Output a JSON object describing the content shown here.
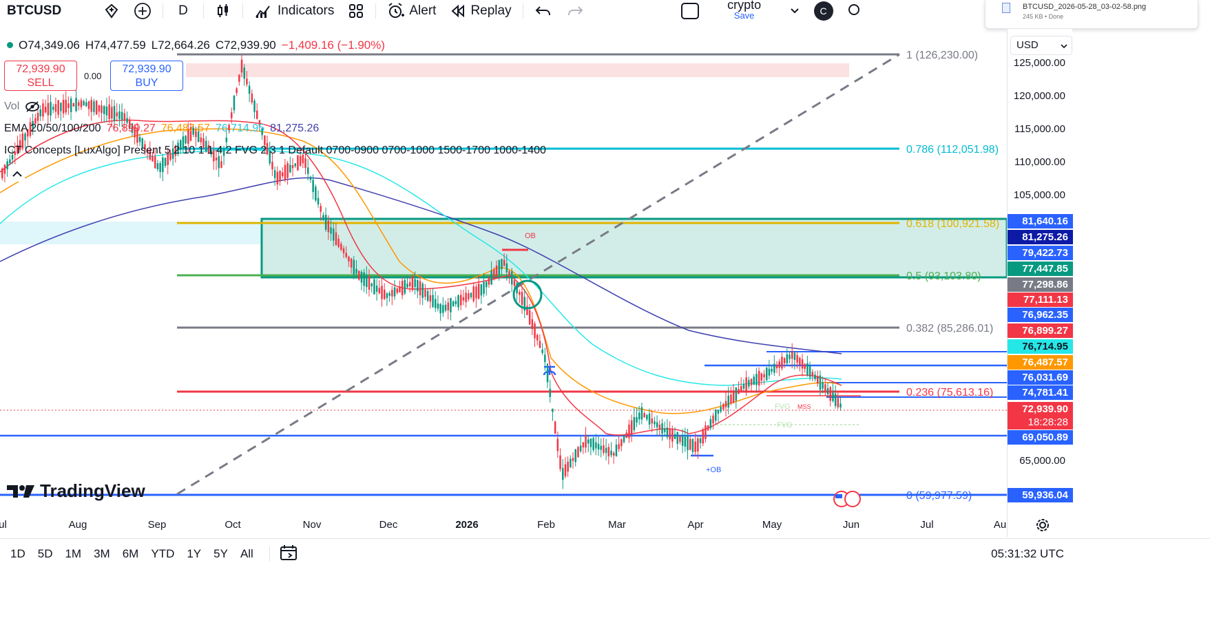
{
  "toolbar": {
    "symbol": "BTCUSD",
    "interval": "D",
    "indicators": "Indicators",
    "alert": "Alert",
    "replay": "Replay",
    "layout_name": "crypto",
    "layout_save": "Save",
    "avatar": "C"
  },
  "download": {
    "filename": "BTCUSD_2026-05-28_03-02-58.png",
    "status": "245 KB • Done"
  },
  "ohlc": {
    "o": "O74,349.06",
    "h": "H74,477.59",
    "l": "L72,664.26",
    "c": "C72,939.90",
    "chg": "−1,409.16 (−1.90%)"
  },
  "trade": {
    "sell_price": "72,939.90",
    "sell_label": "SELL",
    "buy_price": "72,939.90",
    "buy_label": "BUY",
    "spread": "0.00"
  },
  "legends": {
    "vol": "Vol",
    "ema": "EMA 20/50/100/200",
    "ema_values": [
      "76,899.27",
      "76,487.57",
      "76,714.95",
      "81,275.26"
    ],
    "ict": "ICT Concepts [LuxAlgo] Present 5 2 10 1 1 4 2 FVG 2 3 1 Default 0700-0900 0700-1000 1500-1700 1000-1400"
  },
  "fib": [
    {
      "label": "1 (126,230.00)",
      "color": "#787b86"
    },
    {
      "label": "0.786 (112,051.98)",
      "color": "#00bcd4"
    },
    {
      "label": "0.618 (100,921.58)",
      "color": "#e0b400"
    },
    {
      "label": "0.5 (93,103.80)",
      "color": "#4caf50"
    },
    {
      "label": "0.382 (85,286.01)",
      "color": "#787b86"
    },
    {
      "label": "0.236 (75,613.16)",
      "color": "#f23645"
    },
    {
      "label": "0 (59,977.59)",
      "color": "#2962ff"
    }
  ],
  "annotations": {
    "ob": "OB",
    "plus_ob": "+OB",
    "fvg": "FVG",
    "mss": "MSS"
  },
  "currency": "USD",
  "price_ticks": [
    "125,000.00",
    "120,000.00",
    "115,000.00",
    "110,000.00",
    "105,000.00",
    "65,000.00"
  ],
  "price_labels": [
    {
      "text": "81,640.16",
      "color": "#2962ff"
    },
    {
      "text": "81,275.26",
      "color": "#0c1aa6"
    },
    {
      "text": "79,422.73",
      "color": "#2962ff"
    },
    {
      "text": "77,447.85",
      "color": "#089981"
    },
    {
      "text": "77,298.86",
      "color": "#787b86"
    },
    {
      "text": "77,111.13",
      "color": "#f23645"
    },
    {
      "text": "76,962.35",
      "color": "#2962ff"
    },
    {
      "text": "76,899.27",
      "color": "#f23645"
    },
    {
      "text": "76,714.95",
      "color": "#26e7e7"
    },
    {
      "text": "76,487.57",
      "color": "#ff9800"
    },
    {
      "text": "76,031.69",
      "color": "#2962ff"
    },
    {
      "text": "74,781.41",
      "color": "#2962ff"
    },
    {
      "text": "72,939.90",
      "color": "#f23645"
    },
    {
      "text": "18:28:28",
      "color": "#f23645"
    },
    {
      "text": "69,050.89",
      "color": "#2962ff"
    },
    {
      "text": "59,936.04",
      "color": "#2962ff"
    }
  ],
  "time_ticks": [
    "ul",
    "Aug",
    "Sep",
    "Oct",
    "Nov",
    "Dec",
    "2026",
    "Feb",
    "Mar",
    "Apr",
    "May",
    "Jun",
    "Jul",
    "Au"
  ],
  "ranges": [
    "1D",
    "5D",
    "1M",
    "3M",
    "6M",
    "YTD",
    "1Y",
    "5Y",
    "All"
  ],
  "clock": "05:31:32 UTC",
  "brand": "TradingView",
  "colors": {
    "up": "#089981",
    "down": "#f23645",
    "ema20": "#f23645",
    "ema50": "#ff9800",
    "ema100": "#26e7e7",
    "ema200": "#3f3fb0"
  }
}
